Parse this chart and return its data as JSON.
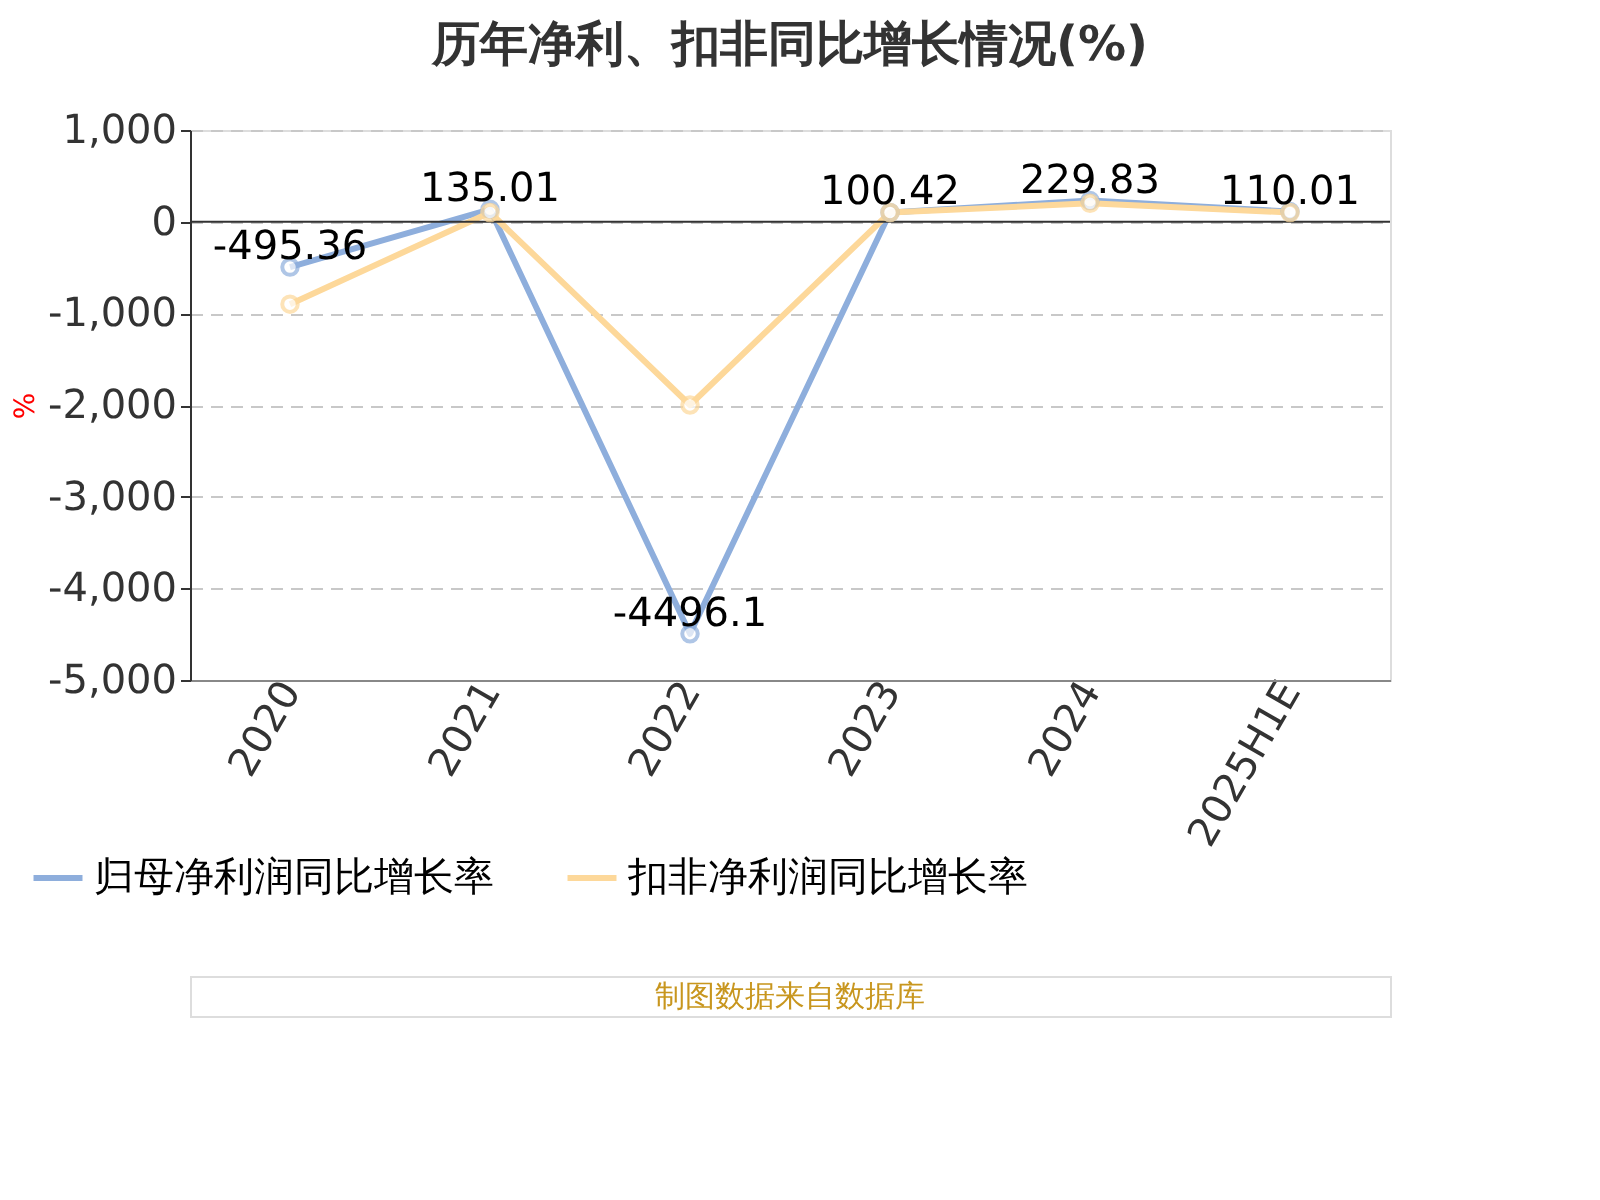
{
  "chart_data": {
    "type": "line",
    "title": "历年净利、扣非同比增长情况(%)",
    "ylabel": "%",
    "categories": [
      "2020",
      "2021",
      "2022",
      "2023",
      "2024",
      "2025H1E"
    ],
    "series": [
      {
        "name": "归母净利润同比增长率",
        "color": "#8eaedc",
        "values": [
          -495.36,
          135.01,
          -4496.1,
          100.42,
          229.83,
          110.01
        ],
        "value_labels": [
          "-495.36",
          "135.01",
          "-4496.1",
          "100.42",
          "229.83",
          "110.01"
        ]
      },
      {
        "name": "扣非净利润同比增长率",
        "color": "#fdd89a",
        "values": [
          -900,
          100,
          -2000,
          100,
          200,
          100
        ]
      }
    ],
    "ylim": [
      -5000,
      1000
    ],
    "yticks": [
      {
        "value": 1000,
        "label": "1,000"
      },
      0,
      {
        "value": -1000,
        "label": "-1,000"
      },
      {
        "value": -2000,
        "label": "-2,000"
      },
      {
        "value": -3000,
        "label": "-3,000"
      },
      {
        "value": -4000,
        "label": "-4,000"
      },
      {
        "value": -5000,
        "label": "-5,000"
      }
    ],
    "grid": "y",
    "legend": "bottom",
    "marker": "circle",
    "line_style": "solid",
    "annotations": [
      "制图数据来自数据库"
    ]
  }
}
